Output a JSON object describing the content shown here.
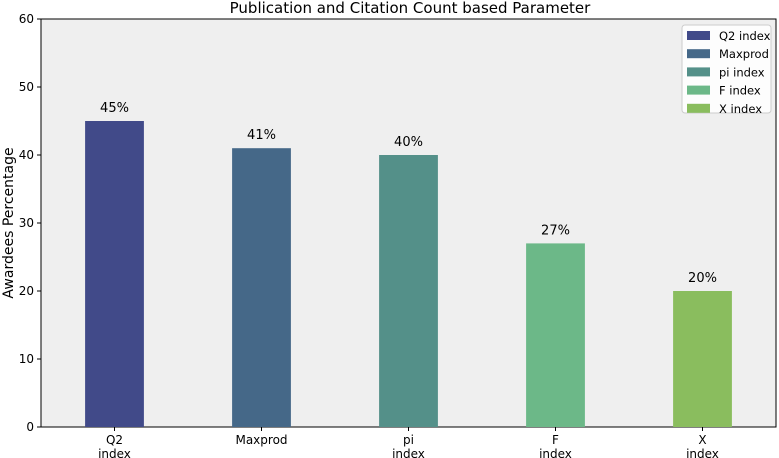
{
  "chart_data": {
    "type": "bar",
    "title": "Publication and Citation Count based Parameter",
    "xlabel": "",
    "ylabel": "Awardees Percentage",
    "ylim": [
      0,
      60
    ],
    "yticks": [
      0,
      10,
      20,
      30,
      40,
      50,
      60
    ],
    "grid": false,
    "legend_position": "top-right",
    "categories": [
      "Q2\nindex",
      "Maxprod",
      "pi\nindex",
      "F\nindex",
      "X\nindex"
    ],
    "legend_labels": [
      "Q2 index",
      "Maxprod",
      "pi index",
      "F index",
      "X index"
    ],
    "values": [
      45,
      41,
      40,
      27,
      20
    ],
    "data_labels": [
      "45%",
      "41%",
      "40%",
      "27%",
      "20%"
    ],
    "colors": [
      "#414a89",
      "#456888",
      "#549089",
      "#6cb888",
      "#8abd5e"
    ],
    "background_color": "#efefef"
  }
}
